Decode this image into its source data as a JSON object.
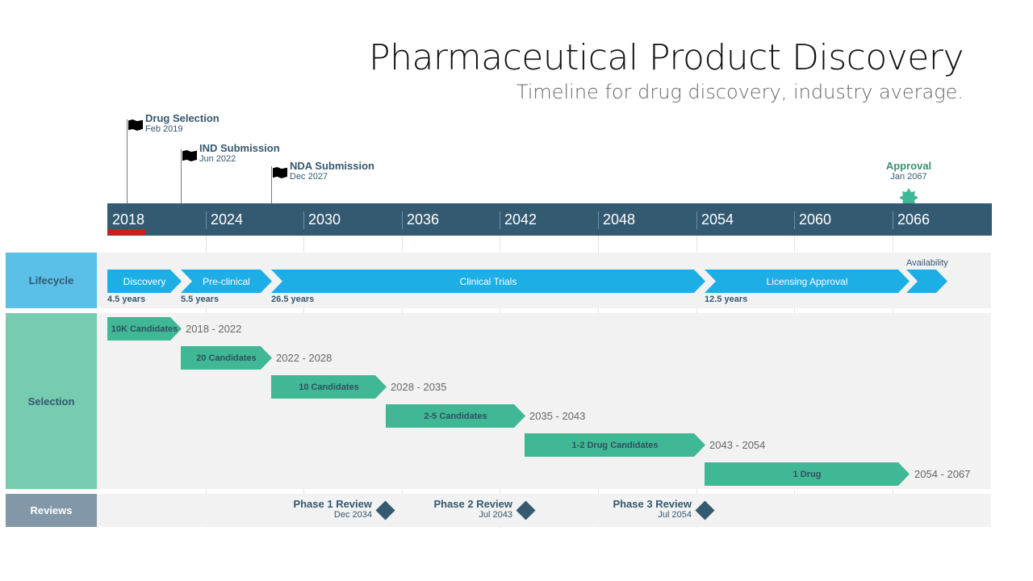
{
  "title": "Pharmaceutical Product Discovery",
  "subtitle": "Timeline for drug discovery, industry average.",
  "milestones": [
    {
      "title": "Drug Selection",
      "date": "Feb 2019"
    },
    {
      "title": "IND Submission",
      "date": "Jun 2022"
    },
    {
      "title": "NDA Submission",
      "date": "Dec 2027"
    },
    {
      "title": "Approval",
      "date": "Jan 2067"
    }
  ],
  "axis_years": [
    "2018",
    "2024",
    "2030",
    "2036",
    "2042",
    "2048",
    "2054",
    "2060",
    "2066"
  ],
  "rows": {
    "lifecycle": "Lifecycle",
    "selection": "Selection",
    "reviews": "Reviews"
  },
  "lifecycle": [
    {
      "label": "Discovery",
      "duration": "4.5 years"
    },
    {
      "label": "Pre-clinical",
      "duration": "5.5 years"
    },
    {
      "label": "Clinical Trials",
      "duration": "26.5 years"
    },
    {
      "label": "Licensing Approval",
      "duration": "12.5 years"
    },
    {
      "label": "Availability"
    }
  ],
  "selection": [
    {
      "label": "10K Candidates",
      "range": "2018 - 2022"
    },
    {
      "label": "20 Candidates",
      "range": "2022 - 2028"
    },
    {
      "label": "10 Candidates",
      "range": "2028 - 2035"
    },
    {
      "label": "2-5 Candidates",
      "range": "2035 - 2043"
    },
    {
      "label": "1-2 Drug Candidates",
      "range": "2043 - 2054"
    },
    {
      "label": "1 Drug",
      "range": "2054 - 2067"
    }
  ],
  "reviews": [
    {
      "title": "Phase 1 Review",
      "date": "Dec 2034"
    },
    {
      "title": "Phase 2 Review",
      "date": "Jul 2043"
    },
    {
      "title": "Phase 3 Review",
      "date": "Jul 2054"
    }
  ],
  "colors": {
    "axis": "#345a72",
    "lifecycle": "#1eaee6",
    "selection": "#40b895",
    "today": "#d11c1c"
  }
}
